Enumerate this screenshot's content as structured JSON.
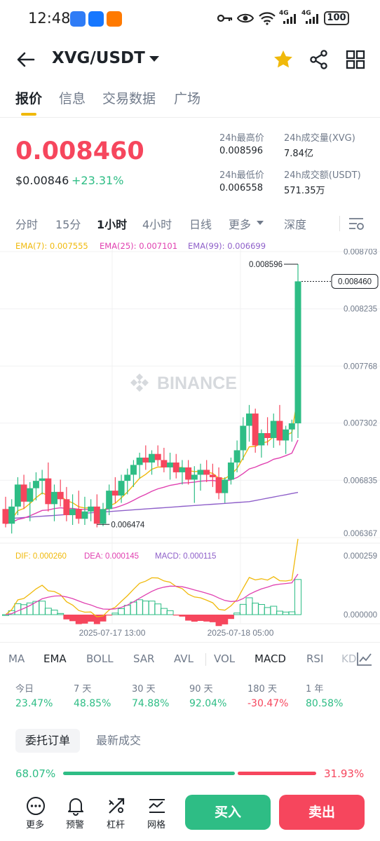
{
  "status_bar": {
    "time": "12:48",
    "battery": "100",
    "net1": "4G",
    "net2": "4G"
  },
  "header": {
    "pair": "XVG/USDT"
  },
  "tabs": [
    "报价",
    "信息",
    "交易数据",
    "广场"
  ],
  "price": {
    "last": "0.008460",
    "usd": "$0.00846",
    "change": "+23.31%"
  },
  "stats": {
    "high_label": "24h最高价",
    "high": "0.008596",
    "low_label": "24h最低价",
    "low": "0.006558",
    "vol_label": "24h成交量(XVG)",
    "vol": "7.84亿",
    "amount_label": "24h成交额(USDT)",
    "amount": "571.35万"
  },
  "intervals": [
    "分时",
    "15分",
    "1小时",
    "4小时",
    "日线",
    "更多",
    "深度"
  ],
  "ema": {
    "ema7": "EMA(7): 0.007555",
    "ema25": "EMA(25): 0.007101",
    "ema99": "EMA(99): 0.006699"
  },
  "colors": {
    "up": "#2ebd85",
    "down": "#f6465d",
    "ema7": "#f0b90b",
    "ema25": "#e040b0",
    "ema99": "#8e5fc9",
    "dif": "#f0b90b",
    "dea": "#e040b0"
  },
  "chart_data": {
    "type": "candlestick",
    "watermark": "BINANCE",
    "y_ticks": [
      "0.008703",
      "0.008235",
      "0.007768",
      "0.007302",
      "0.006835",
      "0.006367"
    ],
    "ylim": [
      0.006367,
      0.008703
    ],
    "high_marker": "0.008596",
    "low_marker": "0.006474",
    "last_price_tag": "0.008460",
    "x_ticks": [
      "2025-07-17 13:00",
      "2025-07-18 05:00"
    ],
    "candles": [
      [
        0.0066,
        0.0067,
        0.00645,
        0.00648
      ],
      [
        0.00648,
        0.00668,
        0.0064,
        0.00662
      ],
      [
        0.00662,
        0.00686,
        0.00655,
        0.0068
      ],
      [
        0.0068,
        0.00688,
        0.0066,
        0.00666
      ],
      [
        0.00666,
        0.00682,
        0.0065,
        0.00677
      ],
      [
        0.00677,
        0.0069,
        0.00667,
        0.00683
      ],
      [
        0.00683,
        0.00692,
        0.00672,
        0.00685
      ],
      [
        0.00685,
        0.00698,
        0.00658,
        0.00664
      ],
      [
        0.00664,
        0.0068,
        0.0065,
        0.00674
      ],
      [
        0.00674,
        0.00684,
        0.00662,
        0.00668
      ],
      [
        0.00668,
        0.00678,
        0.0065,
        0.00655
      ],
      [
        0.00655,
        0.00672,
        0.00647,
        0.0066
      ],
      [
        0.0066,
        0.00675,
        0.00648,
        0.00652
      ],
      [
        0.00652,
        0.0067,
        0.00647,
        0.00658
      ],
      [
        0.00658,
        0.00668,
        0.0065,
        0.00662
      ],
      [
        0.00662,
        0.00672,
        0.00645,
        0.00648
      ],
      [
        0.00648,
        0.00665,
        0.00646,
        0.0066
      ],
      [
        0.0066,
        0.0068,
        0.00655,
        0.00675
      ],
      [
        0.00675,
        0.00686,
        0.00665,
        0.00671
      ],
      [
        0.00671,
        0.00688,
        0.00665,
        0.00683
      ],
      [
        0.00683,
        0.00693,
        0.00672,
        0.00688
      ],
      [
        0.00688,
        0.007,
        0.00678,
        0.00696
      ],
      [
        0.00696,
        0.00706,
        0.00685,
        0.00702
      ],
      [
        0.00702,
        0.00712,
        0.00692,
        0.00698
      ],
      [
        0.00698,
        0.00708,
        0.00688,
        0.00705
      ],
      [
        0.00705,
        0.00712,
        0.00695,
        0.007
      ],
      [
        0.007,
        0.0071,
        0.0069,
        0.00694
      ],
      [
        0.00694,
        0.00706,
        0.00684,
        0.00698
      ],
      [
        0.00698,
        0.00705,
        0.00685,
        0.0069
      ],
      [
        0.0069,
        0.007,
        0.0068,
        0.00694
      ],
      [
        0.00694,
        0.007,
        0.0068,
        0.00684
      ],
      [
        0.00684,
        0.00695,
        0.00665,
        0.00688
      ],
      [
        0.00688,
        0.00697,
        0.00675,
        0.00692
      ],
      [
        0.00692,
        0.007,
        0.00682,
        0.00688
      ],
      [
        0.00688,
        0.00697,
        0.00678,
        0.00686
      ],
      [
        0.00686,
        0.00694,
        0.00668,
        0.00673
      ],
      [
        0.00673,
        0.00686,
        0.00665,
        0.00684
      ],
      [
        0.00684,
        0.00702,
        0.0068,
        0.00698
      ],
      [
        0.00698,
        0.00716,
        0.0069,
        0.00708
      ],
      [
        0.00708,
        0.00735,
        0.007,
        0.00728
      ],
      [
        0.00728,
        0.00745,
        0.00715,
        0.00738
      ],
      [
        0.00738,
        0.00742,
        0.00706,
        0.00712
      ],
      [
        0.00712,
        0.00725,
        0.00702,
        0.00722
      ],
      [
        0.00722,
        0.00735,
        0.00712,
        0.00718
      ],
      [
        0.00718,
        0.00738,
        0.0071,
        0.00732
      ],
      [
        0.00732,
        0.00745,
        0.00712,
        0.00716
      ],
      [
        0.00716,
        0.00728,
        0.00705,
        0.00725
      ],
      [
        0.00725,
        0.00733,
        0.00715,
        0.0073
      ],
      [
        0.0073,
        0.0086,
        0.00718,
        0.00846
      ]
    ],
    "macd_legend": {
      "dif": "DIF: 0.000260",
      "dea": "DEA: 0.000145",
      "macd": "MACD: 0.000115"
    },
    "macd_ticks": [
      "0.000259",
      "0.000000"
    ]
  },
  "indicators": [
    "MA",
    "EMA",
    "BOLL",
    "SAR",
    "AVL",
    "VOL",
    "MACD",
    "RSI",
    "KD"
  ],
  "performance": [
    {
      "label": "今日",
      "value": "23.47%",
      "up": true
    },
    {
      "label": "7 天",
      "value": "48.85%",
      "up": true
    },
    {
      "label": "30 天",
      "value": "74.88%",
      "up": true
    },
    {
      "label": "90 天",
      "value": "92.04%",
      "up": true
    },
    {
      "label": "180 天",
      "value": "-30.47%",
      "up": false
    },
    {
      "label": "1 年",
      "value": "80.58%",
      "up": true
    }
  ],
  "orders": {
    "tab_book": "委托订单",
    "tab_trades": "最新成交",
    "bid_ratio": "68.07%",
    "ask_ratio": "31.93%"
  },
  "bottom_nav": {
    "more": "更多",
    "alert": "预警",
    "leverage": "杠杆",
    "grid": "网格",
    "buy": "买入",
    "sell": "卖出"
  }
}
